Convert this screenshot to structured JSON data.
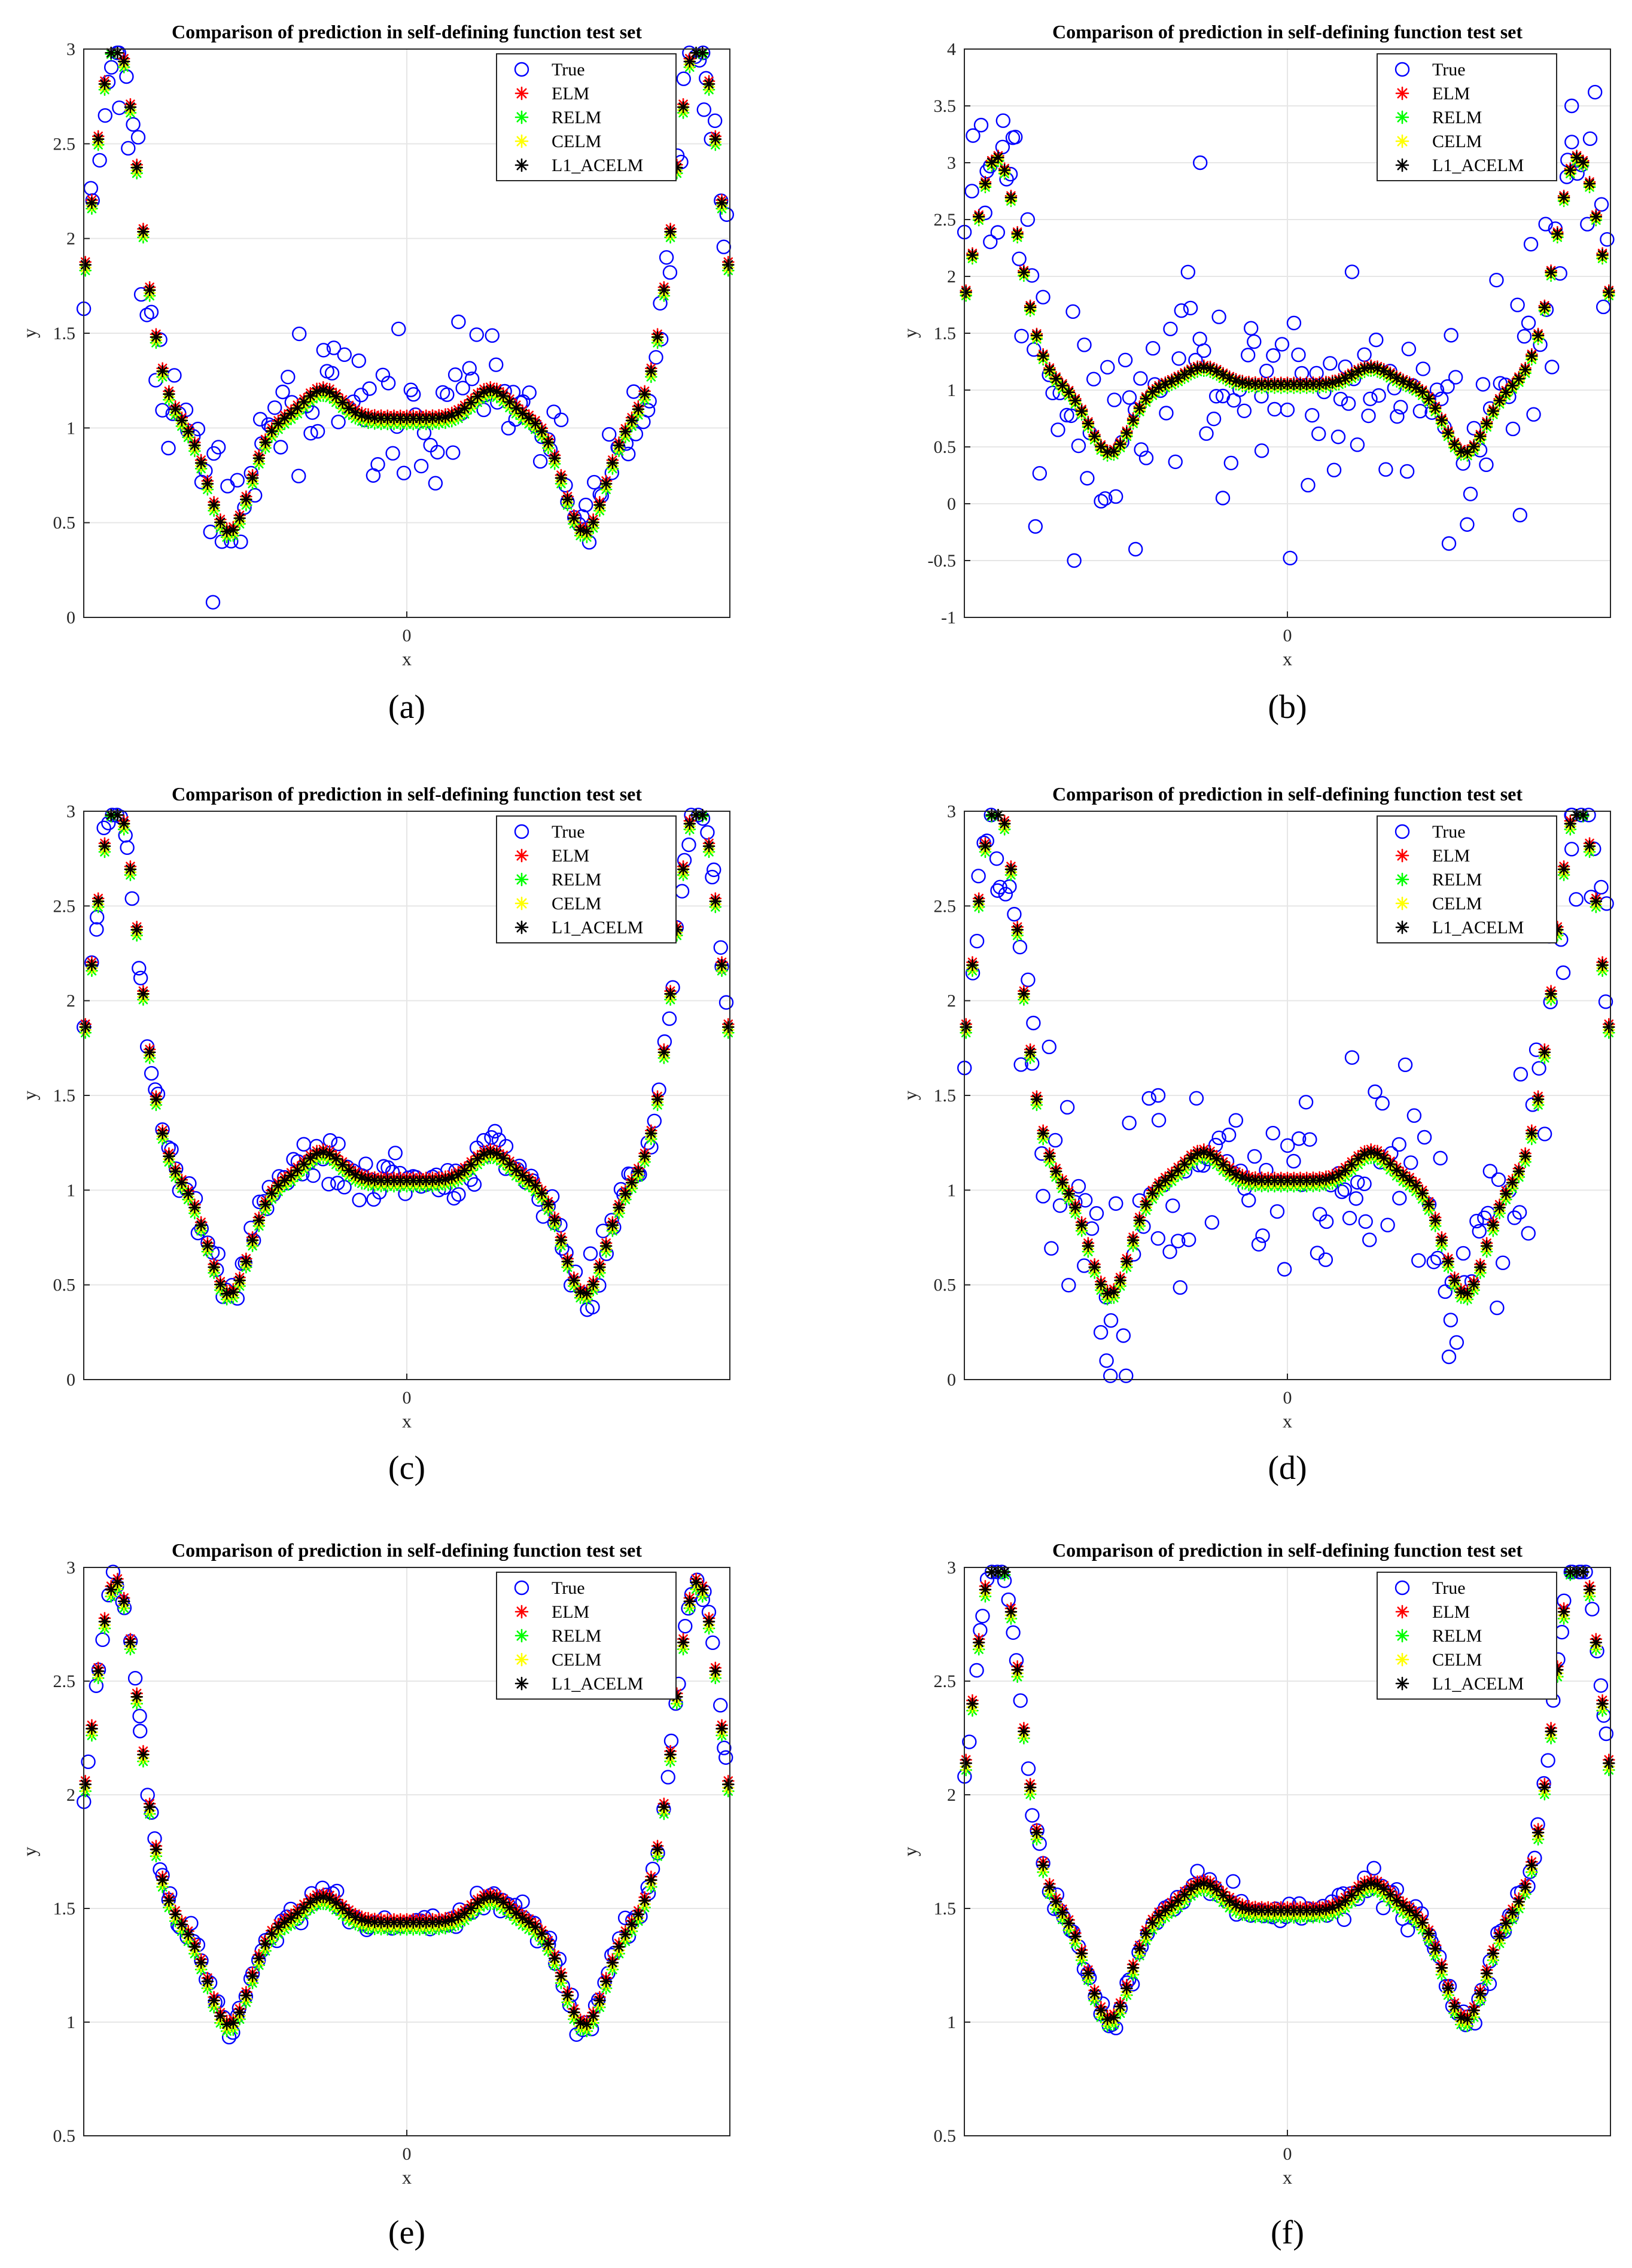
{
  "figure": {
    "colors": {
      "true": "#0000ff",
      "elm": "#ff0000",
      "relm": "#00ff00",
      "celm": "#ffff00",
      "l1_acelm": "#000000",
      "grid": "#e6e6e6",
      "axis": "#262626"
    }
  },
  "chart_data": [
    {
      "id": "a",
      "type": "scatter",
      "title": "Comparison of prediction in self-defining function test set",
      "xlabel": "x",
      "ylabel": "y",
      "panel_label": "(a)",
      "ylim": [
        0,
        3
      ],
      "yticks": [
        0,
        0.5,
        1,
        1.5,
        2,
        2.5,
        3
      ],
      "ytick_labels": [
        "0",
        "0.5",
        "1",
        "1.5",
        "2",
        "2.5",
        "3"
      ],
      "xticks": [
        0
      ],
      "xtick_labels": [
        "0"
      ],
      "xlim": [
        -1,
        1
      ],
      "grid": true,
      "legend": {
        "position": "top-right",
        "entries": [
          "True",
          "ELM",
          "RELM",
          "CELM",
          "L1_ACELM"
        ]
      },
      "noise": 0.18,
      "outliers": [
        [
          -0.6,
          0.08
        ],
        [
          0.16,
          1.56
        ],
        [
          -0.89,
          2.69
        ],
        [
          0.92,
          2.68
        ]
      ],
      "pred_offset": 1.0,
      "pred_scale": 1.0,
      "series": [
        {
          "name": "True",
          "marker": "circle",
          "color_key": "true"
        },
        {
          "name": "ELM",
          "marker": "asterisk",
          "color_key": "elm"
        },
        {
          "name": "RELM",
          "marker": "asterisk",
          "color_key": "relm"
        },
        {
          "name": "CELM",
          "marker": "asterisk",
          "color_key": "celm"
        },
        {
          "name": "L1_ACELM",
          "marker": "asterisk",
          "color_key": "l1_acelm"
        }
      ]
    },
    {
      "id": "b",
      "type": "scatter",
      "title": "Comparison of prediction in self-defining function test set",
      "xlabel": "x",
      "ylabel": "y",
      "panel_label": "(b)",
      "ylim": [
        -1,
        4
      ],
      "yticks": [
        -1,
        -0.5,
        0,
        0.5,
        1,
        1.5,
        2,
        2.5,
        3,
        3.5,
        4
      ],
      "ytick_labels": [
        "-1",
        "-0.5",
        "0",
        "0.5",
        "1",
        "1.5",
        "2",
        "2.5",
        "3",
        "3.5",
        "4"
      ],
      "xticks": [
        0
      ],
      "xtick_labels": [
        "0"
      ],
      "xlim": [
        -1,
        1
      ],
      "grid": true,
      "legend": {
        "position": "top-right",
        "entries": [
          "True",
          "ELM",
          "RELM",
          "CELM",
          "L1_ACELM"
        ]
      },
      "noise": 0.5,
      "outliers": [
        [
          -0.66,
          -0.5
        ],
        [
          -0.47,
          -0.4
        ],
        [
          -0.78,
          -0.2
        ],
        [
          -0.88,
          3.37
        ],
        [
          -0.92,
          2.97
        ],
        [
          -0.85,
          3.22
        ],
        [
          -0.27,
          3.0
        ],
        [
          0.2,
          2.04
        ],
        [
          0.88,
          3.5
        ],
        [
          0.5,
          -0.35
        ],
        [
          0.72,
          -0.1
        ],
        [
          -0.2,
          0.05
        ]
      ],
      "pred_offset": 1.0,
      "pred_scale": 1.0,
      "series": [
        {
          "name": "True",
          "marker": "circle",
          "color_key": "true"
        },
        {
          "name": "ELM",
          "marker": "asterisk",
          "color_key": "elm"
        },
        {
          "name": "RELM",
          "marker": "asterisk",
          "color_key": "relm"
        },
        {
          "name": "CELM",
          "marker": "asterisk",
          "color_key": "celm"
        },
        {
          "name": "L1_ACELM",
          "marker": "asterisk",
          "color_key": "l1_acelm"
        }
      ]
    },
    {
      "id": "c",
      "type": "scatter",
      "title": "Comparison of prediction in self-defining function test set",
      "xlabel": "x",
      "ylabel": "y",
      "panel_label": "(c)",
      "ylim": [
        0,
        3
      ],
      "yticks": [
        0,
        0.5,
        1,
        1.5,
        2,
        2.5,
        3
      ],
      "ytick_labels": [
        "0",
        "0.5",
        "1",
        "1.5",
        "2",
        "2.5",
        "3"
      ],
      "xticks": [
        0
      ],
      "xtick_labels": [
        "0"
      ],
      "xlim": [
        -1,
        1
      ],
      "grid": true,
      "legend": {
        "position": "top-right",
        "entries": [
          "True",
          "ELM",
          "RELM",
          "CELM",
          "L1_ACELM"
        ]
      },
      "noise": 0.07,
      "outliers": [],
      "pred_offset": 1.0,
      "pred_scale": 1.0,
      "series": [
        {
          "name": "True",
          "marker": "circle",
          "color_key": "true"
        },
        {
          "name": "ELM",
          "marker": "asterisk",
          "color_key": "elm"
        },
        {
          "name": "RELM",
          "marker": "asterisk",
          "color_key": "relm"
        },
        {
          "name": "CELM",
          "marker": "asterisk",
          "color_key": "celm"
        },
        {
          "name": "L1_ACELM",
          "marker": "asterisk",
          "color_key": "l1_acelm"
        }
      ]
    },
    {
      "id": "d",
      "type": "scatter",
      "title": "Comparison of prediction in self-defining function test set",
      "xlabel": "x",
      "ylabel": "y",
      "panel_label": "(d)",
      "ylim": [
        0,
        3
      ],
      "yticks": [
        0,
        0.5,
        1,
        1.5,
        2,
        2.5,
        3
      ],
      "ytick_labels": [
        "0",
        "0.5",
        "1",
        "1.5",
        "2",
        "2.5",
        "3"
      ],
      "xticks": [
        0
      ],
      "xtick_labels": [
        "0"
      ],
      "xlim": [
        -1,
        1
      ],
      "grid": true,
      "legend": {
        "position": "top-right",
        "entries": [
          "True",
          "ELM",
          "RELM",
          "CELM",
          "L1_ACELM"
        ]
      },
      "noise": 0.3,
      "outliers": [
        [
          -0.56,
          0.1
        ],
        [
          0.5,
          0.12
        ],
        [
          -0.9,
          2.75
        ],
        [
          0.88,
          2.8
        ],
        [
          -0.4,
          1.5
        ],
        [
          0.2,
          1.7
        ]
      ],
      "pred_offset": 1.0,
      "pred_scale": 1.0,
      "series": [
        {
          "name": "True",
          "marker": "circle",
          "color_key": "true"
        },
        {
          "name": "ELM",
          "marker": "asterisk",
          "color_key": "elm"
        },
        {
          "name": "RELM",
          "marker": "asterisk",
          "color_key": "relm"
        },
        {
          "name": "CELM",
          "marker": "asterisk",
          "color_key": "celm"
        },
        {
          "name": "L1_ACELM",
          "marker": "asterisk",
          "color_key": "l1_acelm"
        }
      ]
    },
    {
      "id": "e",
      "type": "scatter",
      "title": "Comparison of prediction in self-defining function test set",
      "xlabel": "x",
      "ylabel": "y",
      "panel_label": "(e)",
      "ylim": [
        0.5,
        3
      ],
      "yticks": [
        0.5,
        1,
        1.5,
        2,
        2.5,
        3
      ],
      "ytick_labels": [
        "0.5",
        "1",
        "1.5",
        "2",
        "2.5",
        "3"
      ],
      "xticks": [
        0
      ],
      "xtick_labels": [
        "0"
      ],
      "xlim": [
        -1,
        1
      ],
      "grid": true,
      "legend": {
        "position": "top-right",
        "entries": [
          "True",
          "ELM",
          "RELM",
          "CELM",
          "L1_ACELM"
        ]
      },
      "noise": 0.025,
      "outliers": [],
      "pred_offset": 1.4,
      "pred_scale": 0.75,
      "series": [
        {
          "name": "True",
          "marker": "circle",
          "color_key": "true"
        },
        {
          "name": "ELM",
          "marker": "asterisk",
          "color_key": "elm"
        },
        {
          "name": "RELM",
          "marker": "asterisk",
          "color_key": "relm"
        },
        {
          "name": "CELM",
          "marker": "asterisk",
          "color_key": "celm"
        },
        {
          "name": "L1_ACELM",
          "marker": "asterisk",
          "color_key": "l1_acelm"
        }
      ]
    },
    {
      "id": "f",
      "type": "scatter",
      "title": "Comparison of prediction in self-defining function test set",
      "xlabel": "x",
      "ylabel": "y",
      "panel_label": "(f)",
      "ylim": [
        0.5,
        3
      ],
      "yticks": [
        0.5,
        1,
        1.5,
        2,
        2.5,
        3
      ],
      "ytick_labels": [
        "0.5",
        "1",
        "1.5",
        "2",
        "2.5",
        "3"
      ],
      "xticks": [
        0
      ],
      "xtick_labels": [
        "0"
      ],
      "xlim": [
        -1,
        1
      ],
      "grid": true,
      "legend": {
        "position": "top-right",
        "entries": [
          "True",
          "ELM",
          "RELM",
          "CELM",
          "L1_ACELM"
        ]
      },
      "noise": 0.03,
      "outliers": [],
      "pred_offset": 1.45,
      "pred_scale": 0.8,
      "series": [
        {
          "name": "True",
          "marker": "circle",
          "color_key": "true"
        },
        {
          "name": "ELM",
          "marker": "asterisk",
          "color_key": "elm"
        },
        {
          "name": "RELM",
          "marker": "asterisk",
          "color_key": "relm"
        },
        {
          "name": "CELM",
          "marker": "asterisk",
          "color_key": "celm"
        },
        {
          "name": "L1_ACELM",
          "marker": "asterisk",
          "color_key": "l1_acelm"
        }
      ]
    }
  ]
}
